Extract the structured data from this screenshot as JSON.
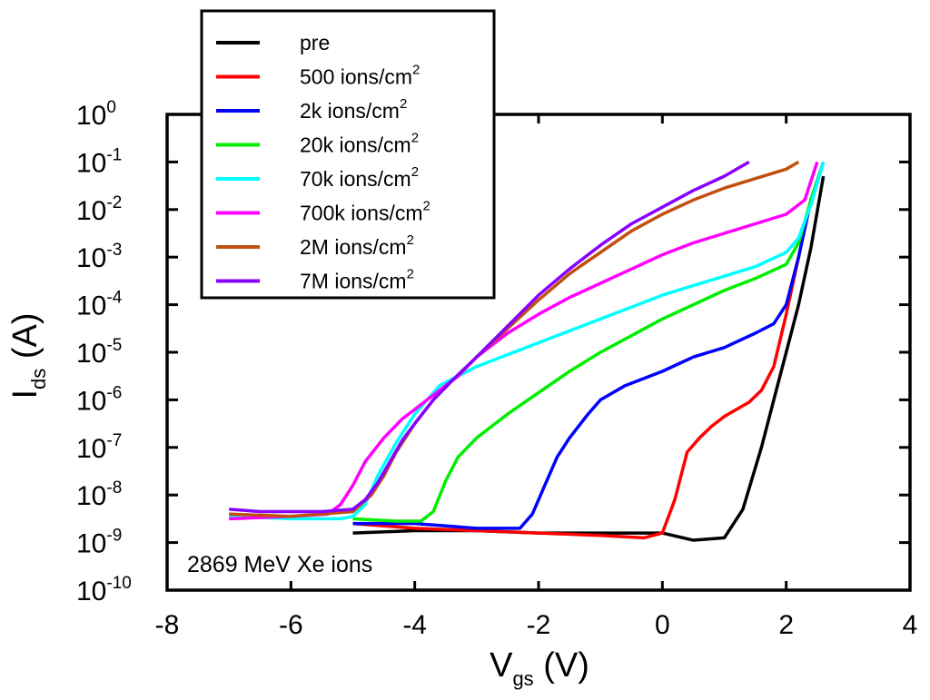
{
  "chart_data": {
    "type": "line",
    "xlabel": {
      "main": "V",
      "sub": "gs",
      "unit": " (V)"
    },
    "ylabel": {
      "main": "I",
      "sub": "ds",
      "unit": " (A)"
    },
    "xlim": [
      -8,
      4
    ],
    "ylim_log10": [
      -10,
      0
    ],
    "yscale": "log",
    "x_ticks": [
      "-8",
      "-6",
      "-4",
      "-2",
      "0",
      "2",
      "4"
    ],
    "y_ticks": [
      {
        "base": "10",
        "exp": "0"
      },
      {
        "base": "10",
        "exp": "-1"
      },
      {
        "base": "10",
        "exp": "-2"
      },
      {
        "base": "10",
        "exp": "-3"
      },
      {
        "base": "10",
        "exp": "-4"
      },
      {
        "base": "10",
        "exp": "-5"
      },
      {
        "base": "10",
        "exp": "-6"
      },
      {
        "base": "10",
        "exp": "-7"
      },
      {
        "base": "10",
        "exp": "-8"
      },
      {
        "base": "10",
        "exp": "-9"
      },
      {
        "base": "10",
        "exp": "-10"
      }
    ],
    "annotation": "2869 MeV Xe ions",
    "legend_position": "top-left (above plot)",
    "grid": false,
    "series": [
      {
        "name": "pre",
        "sup": "",
        "color": "#000000",
        "x": [
          -5.0,
          -4.0,
          -3.0,
          -2.0,
          -1.0,
          0.0,
          0.5,
          1.0,
          1.3,
          1.6,
          1.8,
          2.0,
          2.2,
          2.4,
          2.6
        ],
        "log10_y": [
          -8.8,
          -8.75,
          -8.75,
          -8.8,
          -8.8,
          -8.8,
          -8.95,
          -8.9,
          -8.3,
          -7.0,
          -6.0,
          -5.0,
          -4.0,
          -2.8,
          -1.3
        ]
      },
      {
        "name": "500 ions/cm",
        "sup": "2",
        "color": "#ff0000",
        "x": [
          -5.0,
          -4.0,
          -3.0,
          -2.0,
          -1.0,
          -0.3,
          0.0,
          0.2,
          0.4,
          0.6,
          0.8,
          1.0,
          1.2,
          1.4,
          1.6,
          1.8,
          2.0,
          2.2,
          2.4,
          2.6
        ],
        "log10_y": [
          -8.6,
          -8.7,
          -8.75,
          -8.8,
          -8.85,
          -8.9,
          -8.8,
          -8.1,
          -7.1,
          -6.8,
          -6.55,
          -6.35,
          -6.2,
          -6.05,
          -5.8,
          -5.3,
          -4.2,
          -3.0,
          -1.8,
          -1.0
        ]
      },
      {
        "name": "2k ions/cm",
        "sup": "2",
        "color": "#0000ff",
        "x": [
          -5.0,
          -4.0,
          -3.0,
          -2.3,
          -2.1,
          -1.9,
          -1.7,
          -1.5,
          -1.2,
          -1.0,
          -0.6,
          0.0,
          0.5,
          1.0,
          1.5,
          1.8,
          2.0,
          2.2,
          2.4,
          2.6
        ],
        "log10_y": [
          -8.6,
          -8.6,
          -8.7,
          -8.7,
          -8.4,
          -7.8,
          -7.2,
          -6.8,
          -6.3,
          -6.0,
          -5.7,
          -5.4,
          -5.1,
          -4.9,
          -4.6,
          -4.4,
          -4.0,
          -3.0,
          -1.8,
          -1.0
        ]
      },
      {
        "name": "20k ions/cm",
        "sup": "2",
        "color": "#00ee00",
        "x": [
          -5.0,
          -4.3,
          -3.9,
          -3.7,
          -3.5,
          -3.3,
          -3.0,
          -2.5,
          -2.0,
          -1.5,
          -1.0,
          -0.5,
          0.0,
          0.5,
          1.0,
          1.5,
          2.0,
          2.2,
          2.4,
          2.6
        ],
        "log10_y": [
          -8.5,
          -8.55,
          -8.55,
          -8.35,
          -7.7,
          -7.2,
          -6.8,
          -6.3,
          -5.85,
          -5.4,
          -5.0,
          -4.65,
          -4.3,
          -4.0,
          -3.7,
          -3.45,
          -3.15,
          -2.7,
          -1.8,
          -1.0
        ]
      },
      {
        "name": "70k ions/cm",
        "sup": "2",
        "color": "#00ffff",
        "x": [
          -7.0,
          -6.0,
          -5.2,
          -5.0,
          -4.8,
          -4.6,
          -4.3,
          -4.0,
          -3.8,
          -3.6,
          -3.3,
          -3.0,
          -2.5,
          -2.0,
          -1.5,
          -1.0,
          -0.5,
          0.0,
          0.5,
          1.0,
          1.5,
          2.0,
          2.2,
          2.4,
          2.6
        ],
        "log10_y": [
          -8.45,
          -8.5,
          -8.5,
          -8.45,
          -8.2,
          -7.6,
          -6.9,
          -6.3,
          -6.0,
          -5.7,
          -5.5,
          -5.3,
          -5.05,
          -4.8,
          -4.55,
          -4.3,
          -4.05,
          -3.8,
          -3.6,
          -3.4,
          -3.2,
          -2.9,
          -2.6,
          -1.9,
          -1.0
        ]
      },
      {
        "name": "700k ions/cm",
        "sup": "2",
        "color": "#ff00ff",
        "x": [
          -7.0,
          -6.0,
          -5.4,
          -5.2,
          -5.0,
          -4.8,
          -4.5,
          -4.2,
          -4.0,
          -3.6,
          -3.3,
          -3.0,
          -2.5,
          -2.0,
          -1.5,
          -1.0,
          -0.5,
          0.0,
          0.5,
          1.0,
          1.5,
          2.0,
          2.3,
          2.5
        ],
        "log10_y": [
          -8.5,
          -8.45,
          -8.4,
          -8.2,
          -7.8,
          -7.3,
          -6.8,
          -6.4,
          -6.2,
          -5.8,
          -5.5,
          -5.1,
          -4.6,
          -4.2,
          -3.85,
          -3.55,
          -3.25,
          -2.95,
          -2.7,
          -2.5,
          -2.3,
          -2.1,
          -1.8,
          -1.0
        ]
      },
      {
        "name": "2M ions/cm",
        "sup": "2",
        "color": "#c05010",
        "x": [
          -7.0,
          -6.0,
          -5.0,
          -4.7,
          -4.5,
          -4.3,
          -4.0,
          -3.7,
          -3.4,
          -3.0,
          -2.5,
          -2.0,
          -1.5,
          -1.0,
          -0.5,
          0.0,
          0.5,
          1.0,
          1.5,
          2.0,
          2.2
        ],
        "log10_y": [
          -8.4,
          -8.45,
          -8.35,
          -8.0,
          -7.6,
          -7.1,
          -6.5,
          -6.0,
          -5.6,
          -5.1,
          -4.5,
          -3.9,
          -3.35,
          -2.9,
          -2.45,
          -2.1,
          -1.8,
          -1.55,
          -1.35,
          -1.15,
          -1.0
        ]
      },
      {
        "name": "7M ions/cm",
        "sup": "2",
        "color": "#8800ff",
        "x": [
          -7.0,
          -6.5,
          -6.0,
          -5.5,
          -5.0,
          -4.8,
          -4.6,
          -4.4,
          -4.2,
          -4.0,
          -3.7,
          -3.4,
          -3.0,
          -2.5,
          -2.0,
          -1.5,
          -1.0,
          -0.5,
          0.0,
          0.5,
          1.0,
          1.4
        ],
        "log10_y": [
          -8.3,
          -8.35,
          -8.35,
          -8.35,
          -8.3,
          -8.1,
          -7.75,
          -7.3,
          -6.85,
          -6.5,
          -6.0,
          -5.6,
          -5.1,
          -4.45,
          -3.8,
          -3.25,
          -2.75,
          -2.3,
          -1.95,
          -1.6,
          -1.3,
          -1.0
        ]
      }
    ]
  }
}
